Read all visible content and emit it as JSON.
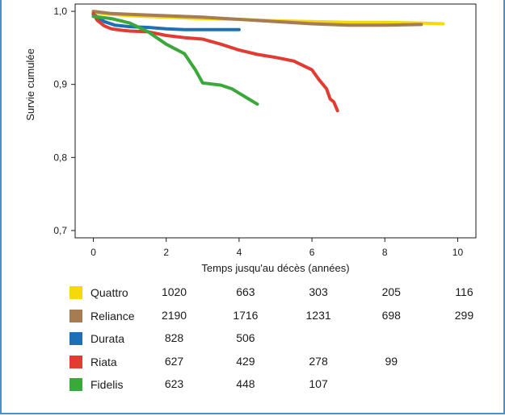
{
  "chart_data": {
    "type": "line",
    "title": "",
    "xlabel": "Temps jusqu'au décès (années)",
    "ylabel": "Survie cumulée",
    "xlim": [
      -0.5,
      10.5
    ],
    "ylim": [
      0.69,
      1.01
    ],
    "x_ticks": [
      0,
      2,
      4,
      6,
      8,
      10
    ],
    "y_ticks": [
      0.7,
      0.8,
      0.9,
      1.0
    ],
    "x_tick_labels": [
      "0",
      "2",
      "4",
      "6",
      "8",
      "10"
    ],
    "y_tick_labels": [
      "0,7",
      "0,8",
      "0,9",
      "1,0"
    ],
    "grid": false,
    "series": [
      {
        "name": "Quattro",
        "color": "#f5d90a",
        "x": [
          0,
          0.5,
          1,
          2,
          3,
          4,
          5,
          6,
          7,
          8,
          9,
          9.6
        ],
        "y": [
          0.998,
          0.996,
          0.994,
          0.992,
          0.99,
          0.989,
          0.987,
          0.986,
          0.985,
          0.985,
          0.984,
          0.983
        ]
      },
      {
        "name": "Reliance",
        "color": "#a67c52",
        "x": [
          0,
          0.5,
          1,
          2,
          3,
          4,
          5,
          6,
          7,
          8,
          9
        ],
        "y": [
          1.0,
          0.997,
          0.996,
          0.994,
          0.992,
          0.989,
          0.986,
          0.983,
          0.981,
          0.981,
          0.982
        ]
      },
      {
        "name": "Durata",
        "color": "#1f6fb5",
        "x": [
          0,
          0.3,
          0.6,
          1,
          1.5,
          2,
          2.5,
          3,
          3.5,
          4
        ],
        "y": [
          0.996,
          0.986,
          0.981,
          0.979,
          0.978,
          0.976,
          0.975,
          0.975,
          0.975,
          0.975
        ]
      },
      {
        "name": "Riata",
        "color": "#e03c31",
        "x": [
          0,
          0.1,
          0.3,
          0.5,
          0.8,
          1,
          1.5,
          2,
          2.5,
          3,
          3.5,
          4,
          4.5,
          5,
          5.5,
          6,
          6.2,
          6.4,
          6.5,
          6.6,
          6.7
        ],
        "y": [
          0.997,
          0.988,
          0.98,
          0.976,
          0.974,
          0.973,
          0.972,
          0.967,
          0.964,
          0.962,
          0.955,
          0.947,
          0.941,
          0.937,
          0.932,
          0.92,
          0.906,
          0.894,
          0.88,
          0.876,
          0.864
        ]
      },
      {
        "name": "Fidelis",
        "color": "#3aa83a",
        "x": [
          0,
          0.5,
          1,
          1.5,
          2,
          2.5,
          2.8,
          3,
          3.5,
          3.8,
          4,
          4.2,
          4.5
        ],
        "y": [
          0.993,
          0.99,
          0.984,
          0.972,
          0.955,
          0.942,
          0.92,
          0.902,
          0.899,
          0.894,
          0.888,
          0.882,
          0.873
        ]
      }
    ]
  },
  "risk_table": {
    "timepoints": [
      0,
      4,
      6,
      8,
      10
    ],
    "rows": [
      {
        "name": "Quattro",
        "color": "#f5d90a",
        "values": [
          "1020",
          "663",
          "303",
          "205",
          "116"
        ]
      },
      {
        "name": "Reliance",
        "color": "#a67c52",
        "values": [
          "2190",
          "1716",
          "1231",
          "698",
          "299"
        ]
      },
      {
        "name": "Durata",
        "color": "#1f6fb5",
        "values": [
          "828",
          "506",
          "",
          "",
          ""
        ]
      },
      {
        "name": "Riata",
        "color": "#e03c31",
        "values": [
          "627",
          "429",
          "278",
          "99",
          ""
        ]
      },
      {
        "name": "Fidelis",
        "color": "#3aa83a",
        "values": [
          "623",
          "448",
          "107",
          "",
          ""
        ]
      }
    ]
  }
}
